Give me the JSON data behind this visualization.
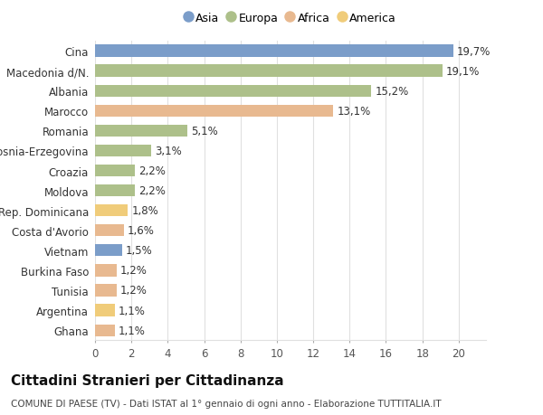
{
  "categories": [
    "Cina",
    "Macedonia d/N.",
    "Albania",
    "Marocco",
    "Romania",
    "Bosnia-Erzegovina",
    "Croazia",
    "Moldova",
    "Rep. Dominicana",
    "Costa d'Avorio",
    "Vietnam",
    "Burkina Faso",
    "Tunisia",
    "Argentina",
    "Ghana"
  ],
  "values": [
    19.7,
    19.1,
    15.2,
    13.1,
    5.1,
    3.1,
    2.2,
    2.2,
    1.8,
    1.6,
    1.5,
    1.2,
    1.2,
    1.1,
    1.1
  ],
  "labels": [
    "19,7%",
    "19,1%",
    "15,2%",
    "13,1%",
    "5,1%",
    "3,1%",
    "2,2%",
    "2,2%",
    "1,8%",
    "1,6%",
    "1,5%",
    "1,2%",
    "1,2%",
    "1,1%",
    "1,1%"
  ],
  "colors": [
    "#7b9dc9",
    "#adc08a",
    "#adc08a",
    "#e8b990",
    "#adc08a",
    "#adc08a",
    "#adc08a",
    "#adc08a",
    "#f0cc7a",
    "#e8b990",
    "#7b9dc9",
    "#e8b990",
    "#e8b990",
    "#f0cc7a",
    "#e8b990"
  ],
  "legend_labels": [
    "Asia",
    "Europa",
    "Africa",
    "America"
  ],
  "legend_colors": [
    "#7b9dc9",
    "#adc08a",
    "#e8b990",
    "#f0cc7a"
  ],
  "title": "Cittadini Stranieri per Cittadinanza",
  "subtitle": "COMUNE DI PAESE (TV) - Dati ISTAT al 1° gennaio di ogni anno - Elaborazione TUTTITALIA.IT",
  "xlim": [
    0,
    21.5
  ],
  "xticks": [
    0,
    2,
    4,
    6,
    8,
    10,
    12,
    14,
    16,
    18,
    20
  ],
  "background_color": "#ffffff",
  "grid_color": "#e0e0e0",
  "label_fontsize": 8.5,
  "tick_fontsize": 8.5,
  "title_fontsize": 11,
  "subtitle_fontsize": 7.5,
  "bar_height": 0.6
}
